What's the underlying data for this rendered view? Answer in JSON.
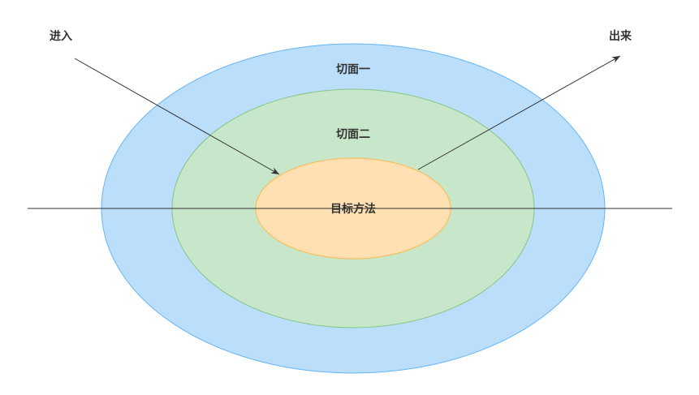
{
  "diagram": {
    "labels": {
      "enter": "进入",
      "exit": "出来",
      "aspect_one": "切面一",
      "aspect_two": "切面二",
      "target_method": "目标方法"
    },
    "colors": {
      "background": "#FFFFFF",
      "aspect_one_fill": "#BBDEFB",
      "aspect_one_stroke": "#64B5F6",
      "aspect_two_fill": "#C8E6C9",
      "aspect_two_stroke": "#81C784",
      "target_fill": "#FFE0B2",
      "target_stroke": "#FFB74D",
      "line": "#333333",
      "text": "#333333"
    }
  }
}
